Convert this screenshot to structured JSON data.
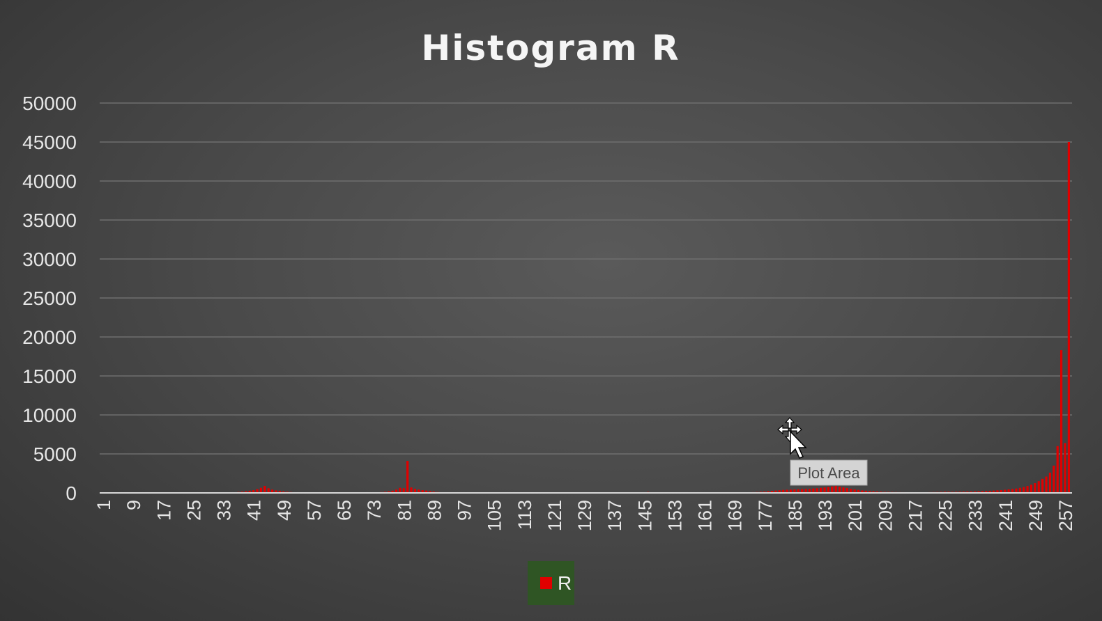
{
  "chart_data": {
    "type": "bar",
    "title": "Histogram R",
    "xlabel": "",
    "ylabel": "",
    "ylim": [
      0,
      50000
    ],
    "y_ticks": [
      "0",
      "5000",
      "10000",
      "15000",
      "20000",
      "25000",
      "30000",
      "35000",
      "40000",
      "45000",
      "50000"
    ],
    "x_tick_labels": [
      "1",
      "9",
      "17",
      "25",
      "33",
      "41",
      "49",
      "57",
      "65",
      "73",
      "81",
      "89",
      "97",
      "105",
      "113",
      "121",
      "129",
      "137",
      "145",
      "153",
      "161",
      "169",
      "177",
      "185",
      "193",
      "201",
      "209",
      "217",
      "225",
      "233",
      "241",
      "249",
      "257"
    ],
    "x_range": [
      1,
      257
    ],
    "grid": true,
    "legend_position": "bottom",
    "series": [
      {
        "name": "R",
        "color": "#e00000",
        "points": [
          [
            36,
            80
          ],
          [
            37,
            120
          ],
          [
            38,
            160
          ],
          [
            39,
            220
          ],
          [
            40,
            280
          ],
          [
            41,
            350
          ],
          [
            42,
            480
          ],
          [
            43,
            650
          ],
          [
            44,
            900
          ],
          [
            45,
            600
          ],
          [
            46,
            420
          ],
          [
            47,
            320
          ],
          [
            48,
            260
          ],
          [
            49,
            200
          ],
          [
            50,
            150
          ],
          [
            51,
            110
          ],
          [
            52,
            80
          ],
          [
            53,
            60
          ],
          [
            54,
            50
          ],
          [
            55,
            40
          ],
          [
            74,
            80
          ],
          [
            75,
            110
          ],
          [
            76,
            150
          ],
          [
            77,
            200
          ],
          [
            78,
            280
          ],
          [
            79,
            420
          ],
          [
            80,
            650
          ],
          [
            81,
            600
          ],
          [
            82,
            4100
          ],
          [
            83,
            700
          ],
          [
            84,
            520
          ],
          [
            85,
            420
          ],
          [
            86,
            350
          ],
          [
            87,
            300
          ],
          [
            88,
            240
          ],
          [
            89,
            180
          ],
          [
            90,
            120
          ],
          [
            91,
            80
          ],
          [
            92,
            60
          ],
          [
            145,
            60
          ],
          [
            146,
            120
          ],
          [
            147,
            60
          ],
          [
            170,
            50
          ],
          [
            171,
            60
          ],
          [
            172,
            70
          ],
          [
            173,
            80
          ],
          [
            174,
            100
          ],
          [
            175,
            120
          ],
          [
            176,
            150
          ],
          [
            177,
            180
          ],
          [
            178,
            220
          ],
          [
            179,
            260
          ],
          [
            180,
            300
          ],
          [
            181,
            340
          ],
          [
            182,
            380
          ],
          [
            183,
            400
          ],
          [
            184,
            420
          ],
          [
            185,
            440
          ],
          [
            186,
            460
          ],
          [
            187,
            480
          ],
          [
            188,
            500
          ],
          [
            189,
            520
          ],
          [
            190,
            560
          ],
          [
            191,
            600
          ],
          [
            192,
            650
          ],
          [
            193,
            700
          ],
          [
            194,
            760
          ],
          [
            195,
            820
          ],
          [
            196,
            900
          ],
          [
            197,
            800
          ],
          [
            198,
            700
          ],
          [
            199,
            620
          ],
          [
            200,
            520
          ],
          [
            201,
            440
          ],
          [
            202,
            380
          ],
          [
            203,
            320
          ],
          [
            204,
            280
          ],
          [
            205,
            240
          ],
          [
            206,
            210
          ],
          [
            207,
            180
          ],
          [
            208,
            160
          ],
          [
            209,
            140
          ],
          [
            210,
            130
          ],
          [
            211,
            120
          ],
          [
            212,
            110
          ],
          [
            213,
            100
          ],
          [
            214,
            95
          ],
          [
            215,
            90
          ],
          [
            216,
            85
          ],
          [
            217,
            80
          ],
          [
            218,
            80
          ],
          [
            219,
            85
          ],
          [
            220,
            90
          ],
          [
            221,
            100
          ],
          [
            222,
            110
          ],
          [
            223,
            120
          ],
          [
            224,
            140
          ],
          [
            225,
            160
          ],
          [
            226,
            150
          ],
          [
            227,
            140
          ],
          [
            228,
            150
          ],
          [
            229,
            160
          ],
          [
            230,
            170
          ],
          [
            231,
            180
          ],
          [
            232,
            190
          ],
          [
            233,
            200
          ],
          [
            234,
            210
          ],
          [
            235,
            230
          ],
          [
            236,
            250
          ],
          [
            237,
            270
          ],
          [
            238,
            300
          ],
          [
            239,
            330
          ],
          [
            240,
            360
          ],
          [
            241,
            400
          ],
          [
            242,
            450
          ],
          [
            243,
            500
          ],
          [
            244,
            560
          ],
          [
            245,
            650
          ],
          [
            246,
            750
          ],
          [
            247,
            880
          ],
          [
            248,
            1050
          ],
          [
            249,
            1250
          ],
          [
            250,
            1500
          ],
          [
            251,
            1800
          ],
          [
            252,
            2100
          ],
          [
            253,
            2600
          ],
          [
            254,
            3500
          ],
          [
            255,
            6000
          ],
          [
            256,
            18300
          ],
          [
            257,
            6400
          ],
          [
            258,
            45000
          ]
        ]
      }
    ],
    "annotations": [
      "Plot Area"
    ]
  }
}
